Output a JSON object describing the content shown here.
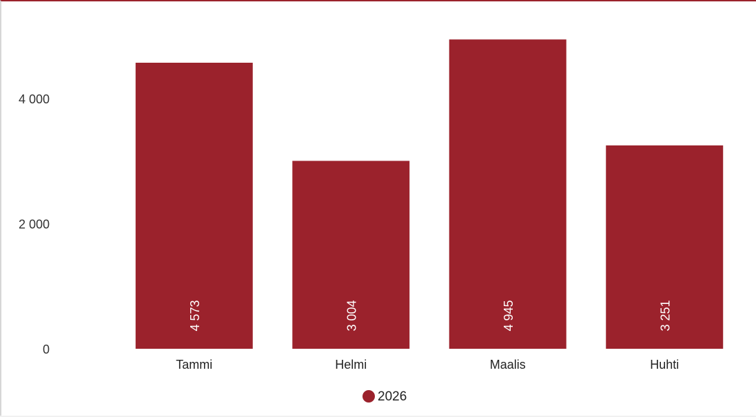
{
  "chart_data": {
    "type": "bar",
    "categories": [
      "Tammi",
      "Helmi",
      "Maalis",
      "Huhti"
    ],
    "series": [
      {
        "name": "2026",
        "values": [
          4573,
          3004,
          4945,
          3251
        ],
        "value_labels": [
          "4 573",
          "3 004",
          "4 945",
          "3 251"
        ],
        "color": "#9b222c"
      }
    ],
    "y_ticks": [
      {
        "value": 0,
        "label": "0"
      },
      {
        "value": 2000,
        "label": "2 000"
      },
      {
        "value": 4000,
        "label": "4 000"
      }
    ],
    "ylim": [
      0,
      5200
    ],
    "grid": false,
    "legend_position": "bottom-center",
    "value_label_orientation": "vertical"
  }
}
